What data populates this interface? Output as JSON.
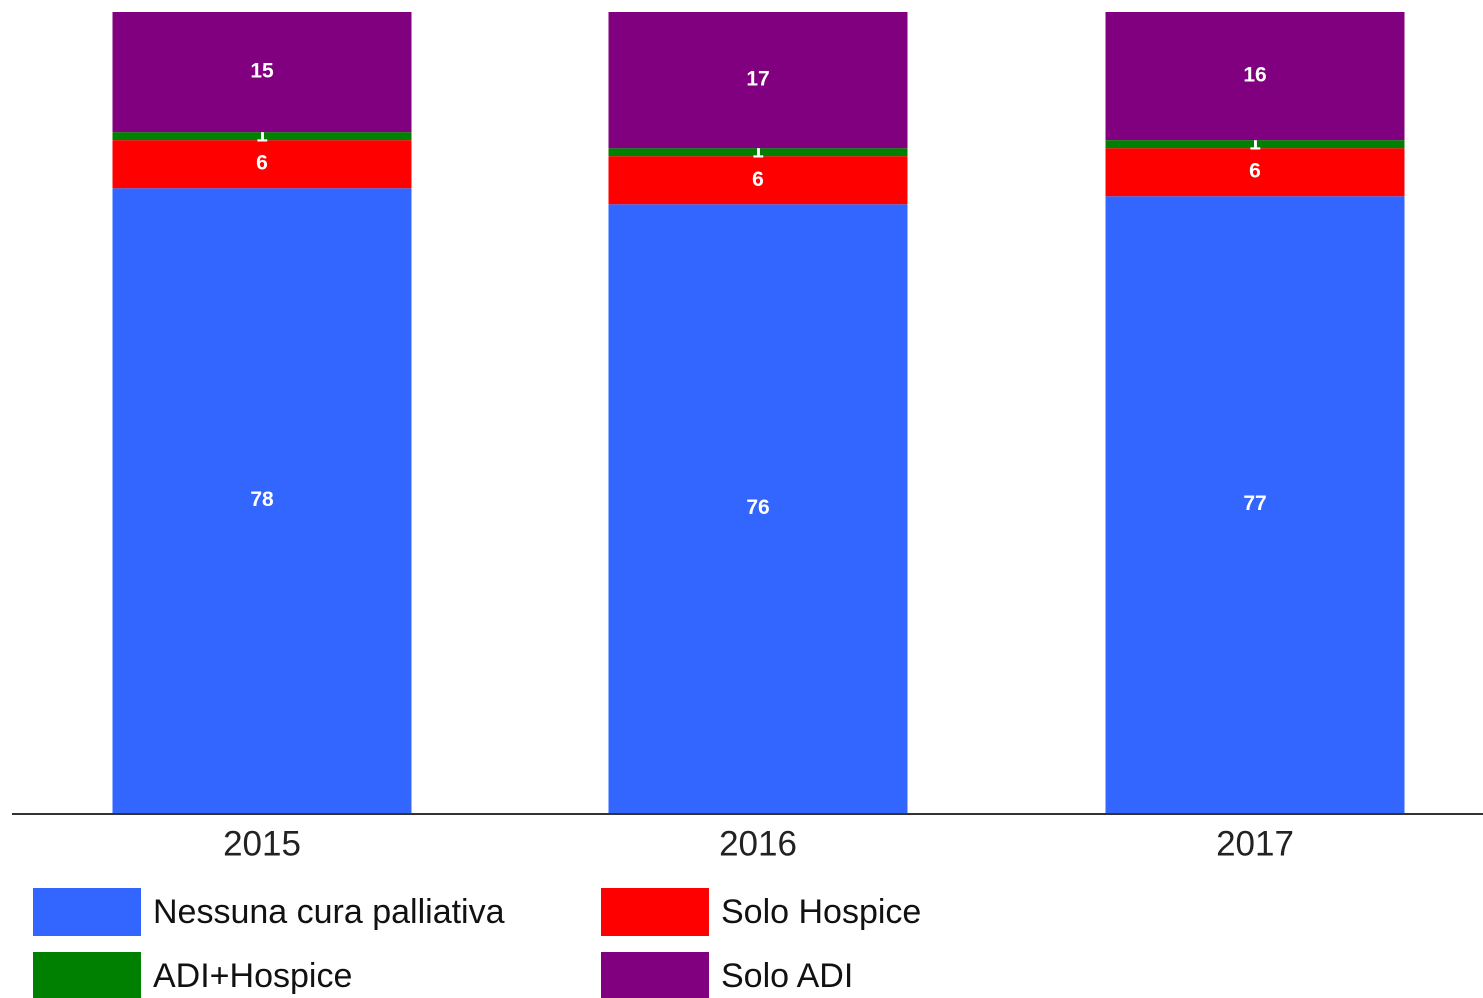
{
  "chart_data": {
    "type": "stacked_bar",
    "categories": [
      "2015",
      "2016",
      "2017"
    ],
    "series": [
      {
        "name": "Nessuna cura palliativa",
        "color": "#3366ff",
        "values": [
          78,
          76,
          77
        ]
      },
      {
        "name": "Solo Hospice",
        "color": "#ff0000",
        "values": [
          6,
          6,
          6
        ]
      },
      {
        "name": "ADI+Hospice",
        "color": "#008000",
        "values": [
          1,
          1,
          1
        ]
      },
      {
        "name": "Solo ADI",
        "color": "#800080",
        "values": [
          15,
          17,
          16
        ]
      }
    ],
    "ylim": [
      0,
      100
    ]
  }
}
